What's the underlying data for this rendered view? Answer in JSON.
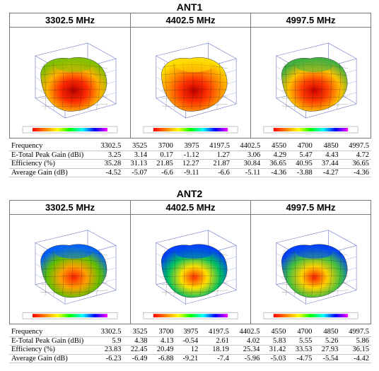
{
  "ant1": {
    "title": "ANT1",
    "panels": [
      {
        "freq": "3302.5 MHz",
        "scheme": "ant1_a"
      },
      {
        "freq": "4402.5 MHz",
        "scheme": "ant1_b"
      },
      {
        "freq": "4997.5 MHz",
        "scheme": "ant1_c"
      }
    ],
    "table": {
      "rows": [
        {
          "label": "Frequency",
          "values": [
            "3302.5",
            "3525",
            "3700",
            "3975",
            "4197.5",
            "4402.5",
            "4550",
            "4700",
            "4850",
            "4997.5"
          ]
        },
        {
          "label": "E-Total Peak Gain (dBi)",
          "values": [
            "3.25",
            "3.14",
            "0.17",
            "-1.12",
            "1.27",
            "3.06",
            "4.29",
            "5.47",
            "4.43",
            "4.72"
          ]
        },
        {
          "label": "Efficiency (%)",
          "values": [
            "35.28",
            "31.13",
            "21.85",
            "12.27",
            "21.87",
            "30.84",
            "36.65",
            "40.95",
            "37.44",
            "36.65"
          ]
        },
        {
          "label": "Average Gain (dB)",
          "values": [
            "-4.52",
            "-5.07",
            "-6.6",
            "-9.11",
            "-6.6",
            "-5.11",
            "-4.36",
            "-3.88",
            "-4.27",
            "-4.36"
          ]
        }
      ]
    }
  },
  "ant2": {
    "title": "ANT2",
    "panels": [
      {
        "freq": "3302.5 MHz",
        "scheme": "ant2_a"
      },
      {
        "freq": "4402.5 MHz",
        "scheme": "ant2_b"
      },
      {
        "freq": "4997.5 MHz",
        "scheme": "ant2_c"
      }
    ],
    "table": {
      "rows": [
        {
          "label": "Frequency",
          "values": [
            "3302.5",
            "3525",
            "3700",
            "3975",
            "4197.5",
            "4402.5",
            "4550",
            "4700",
            "4850",
            "4997.5"
          ]
        },
        {
          "label": "E-Total Peak Gain (dBi)",
          "values": [
            "5.9",
            "4.38",
            "4.13",
            "-0.54",
            "2.61",
            "4.02",
            "5.83",
            "5.55",
            "5.26",
            "5.86"
          ]
        },
        {
          "label": "Efficiency (%)",
          "values": [
            "23.83",
            "22.45",
            "20.49",
            "12",
            "18.19",
            "25.34",
            "31.42",
            "33.53",
            "27.93",
            "36.15"
          ]
        },
        {
          "label": "Average Gain (dB)",
          "values": [
            "-6.23",
            "-6.49",
            "-6.88",
            "-9.21",
            "-7.4",
            "-5.96",
            "-5.03",
            "-4.75",
            "-5.54",
            "-4.42"
          ]
        }
      ]
    }
  },
  "colors": {
    "ant1_a": [
      "#b80000",
      "#ff2a00",
      "#ffb000",
      "#80c000"
    ],
    "ant1_b": [
      "#c00000",
      "#ff3000",
      "#ff9000",
      "#ffe000"
    ],
    "ant1_c": [
      "#d00000",
      "#ff4000",
      "#ffc000",
      "#40b040"
    ],
    "ant2_a": [
      "#ff2000",
      "#ffa000",
      "#60c000",
      "#0060ff"
    ],
    "ant2_b": [
      "#ff3000",
      "#ffe000",
      "#00c060",
      "#0040ff"
    ],
    "ant2_c": [
      "#ff2000",
      "#ffd000",
      "#40c040",
      "#0040ff"
    ]
  }
}
